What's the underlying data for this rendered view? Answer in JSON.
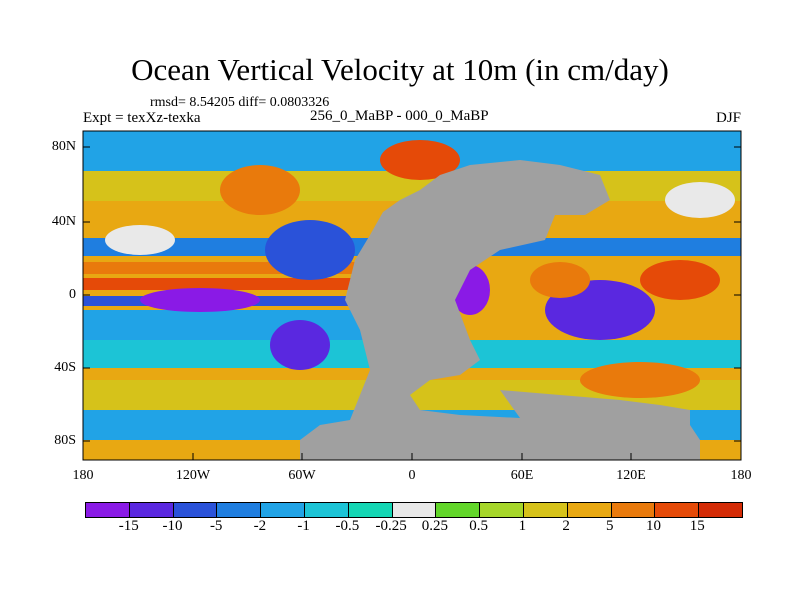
{
  "title": "Ocean Vertical Velocity at 10m (in cm/day)",
  "stats": "rmsd= 8.54205 diff= 0.0803326",
  "expt": "Expt = texXz-texka",
  "difference": "256_0_MaBP - 000_0_MaBP",
  "season": "DJF",
  "map": {
    "y_ticks": [
      "80N",
      "40N",
      "0",
      "40S",
      "80S"
    ],
    "x_ticks": [
      "180",
      "120W",
      "60W",
      "0",
      "60E",
      "120E",
      "180"
    ],
    "land_color": "#a0a0a0"
  },
  "colorbar": {
    "labels": [
      "-15",
      "-10",
      "-5",
      "-2",
      "-1",
      "-0.5",
      "-0.25",
      "0.25",
      "0.5",
      "1",
      "2",
      "5",
      "10",
      "15"
    ],
    "colors": [
      "#8a1ae6",
      "#5a28e0",
      "#2a52d9",
      "#1f7ee0",
      "#21a3e6",
      "#1cc4d6",
      "#14d6b4",
      "#e9e9e9",
      "#62d62a",
      "#a6d62a",
      "#d6c21a",
      "#e8a812",
      "#e97a0c",
      "#e54a08",
      "#d42b06"
    ]
  }
}
